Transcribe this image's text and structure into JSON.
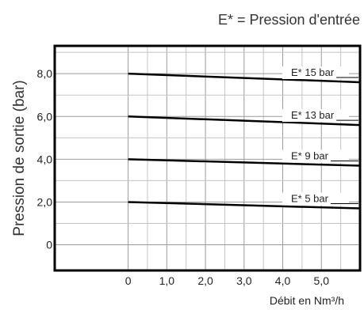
{
  "chart_data": {
    "type": "line",
    "title": "E* = Pression d'entrée",
    "xlabel": "Débit en Nm³/h",
    "ylabel": "Pression de sortie (bar)",
    "xlim": [
      -1.9,
      6.0
    ],
    "ylim": [
      -1.2,
      9.3
    ],
    "x_ticks": [
      0,
      1,
      2,
      3,
      4,
      5
    ],
    "x_tick_labels": [
      "0",
      "1,0",
      "2,0",
      "3,0",
      "4,0",
      "5,0"
    ],
    "y_ticks": [
      0,
      2,
      4,
      6,
      8
    ],
    "y_tick_labels": [
      "0",
      "2,0",
      "4,0",
      "6,0",
      "8,0"
    ],
    "grid": true,
    "legend": "none",
    "series": [
      {
        "name": "E* 15 bar",
        "x": [
          0,
          6.0
        ],
        "y": [
          8.0,
          7.6
        ]
      },
      {
        "name": "E* 13 bar",
        "x": [
          0,
          6.0
        ],
        "y": [
          6.0,
          5.6
        ]
      },
      {
        "name": "E* 9 bar",
        "x": [
          0,
          6.0
        ],
        "y": [
          4.0,
          3.7
        ]
      },
      {
        "name": "E* 5 bar",
        "x": [
          0,
          6.0
        ],
        "y": [
          2.0,
          1.7
        ]
      }
    ]
  }
}
